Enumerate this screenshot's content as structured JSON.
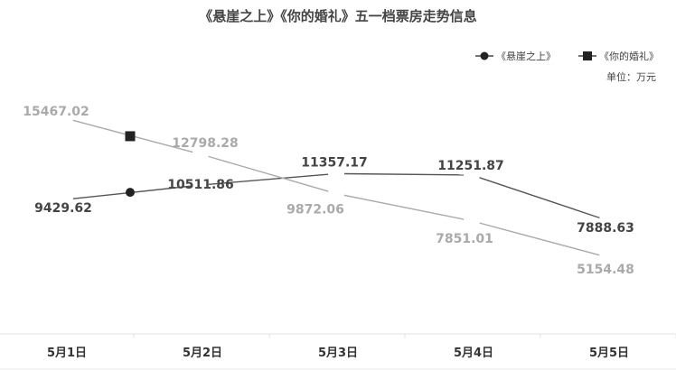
{
  "chart_data": {
    "type": "line",
    "title": "《悬崖之上》《你的婚礼》五一档票房走势信息",
    "unit_label": "单位：万元",
    "categories": [
      "5月1日",
      "5月2日",
      "5月3日",
      "5月4日",
      "5月5日"
    ],
    "series": [
      {
        "name": "《悬崖之上》",
        "marker": "circle",
        "color": "#555555",
        "label_color": "#444444",
        "values": [
          9429.62,
          10511.86,
          11357.17,
          11251.87,
          7888.63
        ],
        "labels": [
          "9429.62",
          "10511.86",
          "11357.17",
          "11251.87",
          "7888.63"
        ]
      },
      {
        "name": "《你的婚礼》",
        "marker": "square",
        "color": "#aaaaaa",
        "label_color": "#aaaaaa",
        "values": [
          15467.02,
          12798.28,
          9872.06,
          7851.01,
          5154.48
        ],
        "labels": [
          "15467.02",
          "12798.28",
          "9872.06",
          "7851.01",
          "5154.48"
        ]
      }
    ],
    "legend_position": "top-right",
    "grid": false
  }
}
